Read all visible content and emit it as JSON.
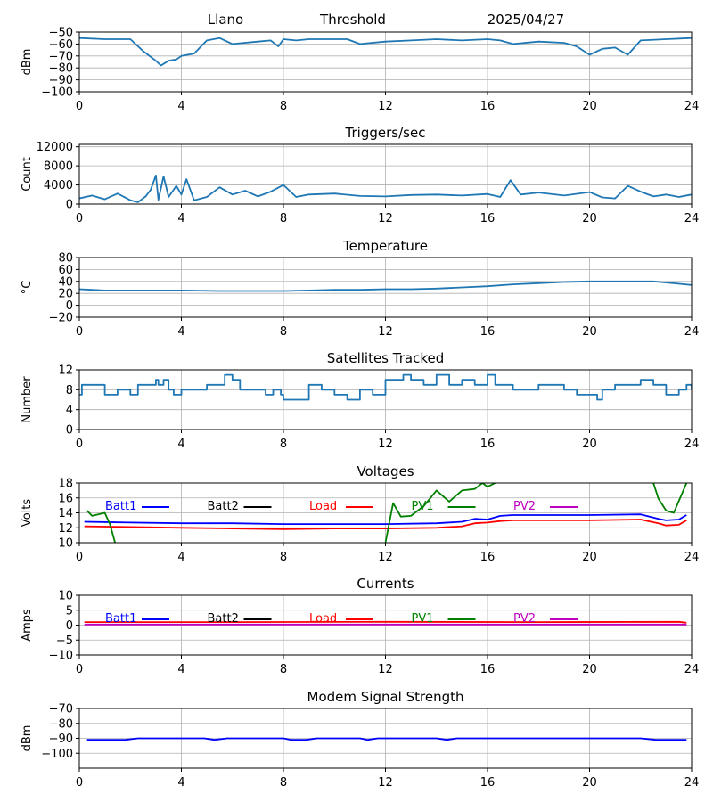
{
  "header": {
    "site": "Llano",
    "mode": "Threshold",
    "date": "2025/04/27"
  },
  "x_ticks": [
    "0",
    "4",
    "8",
    "12",
    "16",
    "20",
    "24"
  ],
  "chart_data": [
    {
      "id": "threshold",
      "type": "line",
      "title": "",
      "xlabel": "",
      "ylabel": "dBm",
      "xlim": [
        0,
        24
      ],
      "ylim": [
        -100,
        -50
      ],
      "yticks": [
        -100,
        -90,
        -80,
        -70,
        -60,
        -50
      ],
      "yticklabels": [
        "−100",
        "−90",
        "−80",
        "−70",
        "−60",
        "−50"
      ],
      "grid": true,
      "series": [
        {
          "color": "#1f77b4",
          "x": [
            0,
            1,
            2,
            2.5,
            3,
            3.2,
            3.5,
            3.8,
            4,
            4.5,
            5,
            5.5,
            6,
            7,
            7.5,
            7.8,
            8,
            8.5,
            9,
            10,
            10.5,
            11,
            12,
            13,
            14,
            15,
            16,
            16.5,
            17,
            18,
            19,
            19.5,
            20,
            20.5,
            21,
            21.5,
            22,
            23,
            24
          ],
          "y": [
            -55,
            -56,
            -56,
            -66,
            -74,
            -78,
            -74,
            -73,
            -70,
            -68,
            -57,
            -55,
            -60,
            -58,
            -57,
            -62,
            -56,
            -57,
            -56,
            -56,
            -56,
            -60,
            -58,
            -57,
            -56,
            -57,
            -56,
            -57,
            -60,
            -58,
            -59,
            -62,
            -69,
            -64,
            -63,
            -69,
            -57,
            -56,
            -55
          ]
        }
      ]
    },
    {
      "id": "triggers",
      "type": "line",
      "title": "Triggers/sec",
      "xlabel": "",
      "ylabel": "Count",
      "xlim": [
        0,
        24
      ],
      "ylim": [
        0,
        12500
      ],
      "yticks": [
        0,
        4000,
        8000,
        12000
      ],
      "yticklabels": [
        "0",
        "4000",
        "8000",
        "12000"
      ],
      "grid": true,
      "series": [
        {
          "color": "#1f77b4",
          "x": [
            0,
            0.5,
            1,
            1.5,
            2,
            2.3,
            2.6,
            2.8,
            3,
            3.1,
            3.3,
            3.5,
            3.8,
            4,
            4.2,
            4.5,
            5,
            5.5,
            6,
            6.5,
            7,
            7.5,
            8,
            8.5,
            9,
            10,
            11,
            12,
            13,
            14,
            15,
            16,
            16.5,
            16.9,
            17.3,
            18,
            19,
            20,
            20.5,
            21,
            21.5,
            22,
            22.5,
            23,
            23.5,
            24
          ],
          "y": [
            1200,
            1800,
            1000,
            2200,
            800,
            400,
            1600,
            3000,
            6000,
            900,
            5800,
            1500,
            3800,
            2000,
            5200,
            800,
            1500,
            3500,
            2000,
            2800,
            1600,
            2600,
            4000,
            1500,
            2000,
            2200,
            1700,
            1600,
            1900,
            2000,
            1800,
            2100,
            1500,
            5000,
            2000,
            2400,
            1800,
            2500,
            1400,
            1200,
            3800,
            2600,
            1600,
            2000,
            1500,
            2000
          ]
        }
      ]
    },
    {
      "id": "temperature",
      "type": "line",
      "title": "Temperature",
      "xlabel": "",
      "ylabel": "°C",
      "xlim": [
        0,
        24
      ],
      "ylim": [
        -20,
        80
      ],
      "yticks": [
        -20,
        0,
        20,
        40,
        60,
        80
      ],
      "yticklabels": [
        "−20",
        "0",
        "20",
        "40",
        "60",
        "80"
      ],
      "grid": true,
      "series": [
        {
          "color": "#1f77b4",
          "x": [
            0,
            0.5,
            1,
            4,
            5.5,
            8,
            9,
            10,
            11,
            12,
            13,
            14,
            15,
            16,
            17,
            18,
            19,
            20,
            21,
            22,
            22.5,
            23,
            24
          ],
          "y": [
            27,
            26,
            25,
            25,
            24,
            24,
            25,
            26,
            26,
            27,
            27,
            28,
            30,
            32,
            35,
            37,
            39,
            40,
            40,
            40,
            40,
            38,
            34
          ]
        }
      ]
    },
    {
      "id": "satellites",
      "type": "line",
      "title": "Satellites Tracked",
      "xlabel": "",
      "ylabel": "Number",
      "xlim": [
        0,
        24
      ],
      "ylim": [
        0,
        12
      ],
      "yticks": [
        0,
        4,
        8,
        12
      ],
      "yticklabels": [
        "0",
        "4",
        "8",
        "12"
      ],
      "grid": true,
      "series": [
        {
          "color": "#1f77b4",
          "step": true,
          "x": [
            0,
            0.1,
            0.4,
            1,
            1.5,
            2,
            2.3,
            3,
            3.1,
            3.3,
            3.5,
            3.7,
            4,
            4.5,
            5,
            5.7,
            6,
            6.3,
            7,
            7.3,
            7.6,
            7.9,
            8,
            9,
            9.5,
            10,
            10.5,
            11,
            11.5,
            12,
            12.7,
            13,
            13.5,
            14,
            14.5,
            15,
            15.5,
            16,
            16.3,
            17,
            18,
            19,
            19.5,
            20,
            20.3,
            20.5,
            21,
            22,
            22.5,
            23,
            23.5,
            23.8,
            24
          ],
          "y": [
            7,
            9,
            9,
            7,
            8,
            7,
            9,
            10,
            9,
            10,
            8,
            7,
            8,
            8,
            9,
            11,
            10,
            8,
            8,
            7,
            8,
            7,
            6,
            9,
            8,
            7,
            6,
            8,
            7,
            10,
            11,
            10,
            9,
            11,
            9,
            10,
            9,
            11,
            9,
            8,
            9,
            8,
            7,
            7,
            6,
            8,
            9,
            10,
            9,
            7,
            8,
            9,
            8
          ]
        }
      ]
    },
    {
      "id": "voltages",
      "type": "line",
      "title": "Voltages",
      "xlabel": "",
      "ylabel": "Volts",
      "xlim": [
        0,
        24
      ],
      "ylim": [
        10,
        18
      ],
      "yticks": [
        10,
        12,
        14,
        16,
        18
      ],
      "yticklabels": [
        "10",
        "12",
        "14",
        "16",
        "18"
      ],
      "grid": true,
      "legend": [
        {
          "label": "Batt1",
          "color": "#0000ff"
        },
        {
          "label": "Batt2",
          "color": "#000000"
        },
        {
          "label": "Load",
          "color": "#ff0000"
        },
        {
          "label": "PV1",
          "color": "#008000"
        },
        {
          "label": "PV2",
          "color": "#bf00bf"
        }
      ],
      "series": [
        {
          "color": "#0000ff",
          "x": [
            0.2,
            2,
            4,
            6,
            8,
            10,
            12,
            14,
            15,
            15.5,
            16,
            16.5,
            17,
            18,
            20,
            22,
            22.7,
            23,
            23.5,
            23.8
          ],
          "y": [
            12.8,
            12.7,
            12.6,
            12.6,
            12.5,
            12.5,
            12.5,
            12.6,
            12.8,
            13.2,
            13.1,
            13.6,
            13.7,
            13.7,
            13.7,
            13.8,
            13.2,
            13.0,
            13.1,
            13.7
          ]
        },
        {
          "color": "#ff0000",
          "x": [
            0.2,
            2,
            4,
            6,
            8,
            10,
            12,
            14,
            15,
            15.5,
            16,
            16.5,
            17,
            18,
            20,
            22,
            22.7,
            23,
            23.5,
            23.8
          ],
          "y": [
            12.2,
            12.1,
            12.0,
            11.9,
            11.8,
            11.9,
            11.9,
            12.0,
            12.2,
            12.6,
            12.7,
            12.9,
            13.0,
            13.0,
            13.0,
            13.1,
            12.6,
            12.3,
            12.4,
            13.0
          ]
        },
        {
          "color": "#008000",
          "x": [
            0.3,
            0.5,
            1,
            1.2,
            1.4
          ],
          "y": [
            14.3,
            13.6,
            14.0,
            12.5,
            10
          ]
        },
        {
          "color": "#008000",
          "x": [
            12,
            12.3,
            12.6,
            13,
            13.5,
            14,
            14.5,
            15,
            15.5,
            15.8,
            16,
            16.3
          ],
          "y": [
            10,
            15.3,
            13.5,
            13.6,
            14.9,
            17.0,
            15.5,
            17.0,
            17.2,
            18.0,
            17.5,
            18.0
          ]
        },
        {
          "color": "#008000",
          "x": [
            22.5,
            22.7,
            23,
            23.3,
            23.8
          ],
          "y": [
            18,
            15.9,
            14.3,
            14.0,
            18
          ]
        }
      ]
    },
    {
      "id": "currents",
      "type": "line",
      "title": "Currents",
      "xlabel": "",
      "ylabel": "Amps",
      "xlim": [
        0,
        24
      ],
      "ylim": [
        -10,
        10
      ],
      "yticks": [
        -10,
        -5,
        0,
        5,
        10
      ],
      "yticklabels": [
        "−10",
        "−5",
        "0",
        "5",
        "10"
      ],
      "grid": true,
      "legend": [
        {
          "label": "Batt1",
          "color": "#0000ff"
        },
        {
          "label": "Batt2",
          "color": "#000000"
        },
        {
          "label": "Load",
          "color": "#ff0000"
        },
        {
          "label": "PV1",
          "color": "#008000"
        },
        {
          "label": "PV2",
          "color": "#bf00bf"
        }
      ],
      "series": [
        {
          "color": "#ff0000",
          "x": [
            0.2,
            6,
            12,
            18,
            23.5,
            23.8
          ],
          "y": [
            1.0,
            1.0,
            1.1,
            1.0,
            1.1,
            0.8
          ]
        },
        {
          "color": "#bf00bf",
          "x": [
            0.2,
            23.8
          ],
          "y": [
            0.2,
            0.2
          ]
        }
      ]
    },
    {
      "id": "modem",
      "type": "line",
      "title": "Modem Signal Strength",
      "xlabel": "",
      "ylabel": "dBm",
      "xlim": [
        0,
        24
      ],
      "ylim": [
        -110,
        -70
      ],
      "yticks": [
        -100,
        -90,
        -80,
        -70
      ],
      "yticklabels": [
        "−100",
        "−90",
        "−80",
        "−70"
      ],
      "grid": true,
      "series": [
        {
          "color": "#0000ff",
          "x": [
            0.3,
            1.8,
            2.3,
            4.9,
            5.3,
            5.8,
            8,
            8.3,
            8.9,
            9.3,
            11,
            11.3,
            11.7,
            14,
            14.4,
            14.8,
            22,
            22.6,
            23.8
          ],
          "y": [
            -91,
            -91,
            -90,
            -90,
            -91,
            -90,
            -90,
            -91,
            -91,
            -90,
            -90,
            -91,
            -90,
            -90,
            -91,
            -90,
            -90,
            -91,
            -91
          ]
        }
      ]
    }
  ]
}
